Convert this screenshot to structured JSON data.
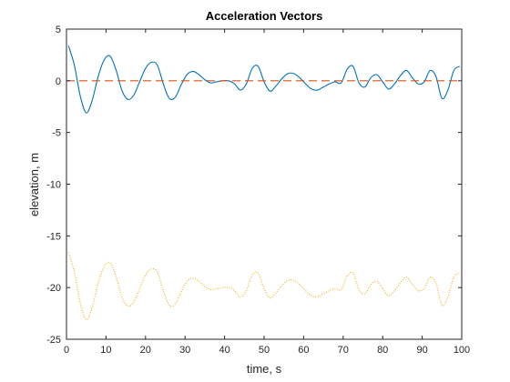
{
  "chart_data": {
    "type": "line",
    "title": "Acceleration Vectors",
    "xlabel": "time, s",
    "ylabel": "elevation, m",
    "xlim": [
      0,
      100
    ],
    "ylim": [
      -25,
      5
    ],
    "xticks": [
      0,
      10,
      20,
      30,
      40,
      50,
      60,
      70,
      80,
      90,
      100
    ],
    "yticks": [
      5,
      0,
      -5,
      -10,
      -15,
      -20,
      -25
    ],
    "xtick_labels": [
      "0",
      "10",
      "20",
      "30",
      "40",
      "50",
      "60",
      "70",
      "80",
      "90",
      "100"
    ],
    "ytick_labels": [
      "5",
      "0",
      "-5",
      "-10",
      "-15",
      "-20",
      "-25"
    ],
    "grid": false,
    "series": [
      {
        "style": "solid",
        "color": "#0072BD",
        "x": [
          0.5,
          2,
          3.5,
          5,
          6.5,
          8,
          9.5,
          11,
          12.5,
          14,
          15.5,
          17,
          18.5,
          20,
          21.5,
          23,
          24.5,
          26,
          27.5,
          29,
          30.5,
          32,
          33.5,
          35,
          36.5,
          38,
          39.5,
          41,
          42.5,
          44,
          45.5,
          47,
          48.5,
          50,
          51.5,
          53,
          54.5,
          56,
          57.5,
          59,
          60.5,
          62,
          63.5,
          65,
          66.5,
          68,
          69.5,
          71,
          72.5,
          74,
          75.5,
          77,
          78.5,
          80,
          81.5,
          83,
          84.5,
          86,
          87.5,
          89,
          90.5,
          92,
          93.5,
          95,
          96.5,
          98,
          99.5
        ],
        "y": [
          3.4,
          1.5,
          -1.5,
          -3.1,
          -1.9,
          0.4,
          2.0,
          2.4,
          1.1,
          -0.9,
          -1.8,
          -1.4,
          -0.1,
          1.2,
          1.8,
          1.5,
          -0.3,
          -1.7,
          -1.6,
          -0.4,
          0.6,
          0.9,
          0.6,
          0.1,
          -0.2,
          -0.1,
          0.0,
          0.0,
          -0.3,
          -0.9,
          -0.3,
          1.2,
          1.4,
          -0.1,
          -1.0,
          -0.5,
          0.2,
          0.7,
          0.7,
          0.3,
          -0.3,
          -0.8,
          -0.9,
          -0.6,
          -0.3,
          -0.1,
          -0.2,
          1.1,
          1.4,
          -0.2,
          -0.6,
          0.3,
          0.6,
          -0.1,
          -0.8,
          -0.3,
          0.5,
          1.0,
          0.3,
          -0.3,
          -0.1,
          1.0,
          0.4,
          -1.7,
          -0.9,
          1.0,
          1.4
        ]
      },
      {
        "style": "dashed",
        "color": "#D95319",
        "x": [
          0,
          100
        ],
        "y": [
          0,
          0
        ]
      },
      {
        "style": "dotted",
        "color": "#EDB120",
        "x": [
          0.5,
          2,
          3.5,
          5,
          6.5,
          8,
          9.5,
          11,
          12.5,
          14,
          15.5,
          17,
          18.5,
          20,
          21.5,
          23,
          24.5,
          26,
          27.5,
          29,
          30.5,
          32,
          33.5,
          35,
          36.5,
          38,
          39.5,
          41,
          42.5,
          44,
          45.5,
          47,
          48.5,
          50,
          51.5,
          53,
          54.5,
          56,
          57.5,
          59,
          60.5,
          62,
          63.5,
          65,
          66.5,
          68,
          69.5,
          71,
          72.5,
          74,
          75.5,
          77,
          78.5,
          80,
          81.5,
          83,
          84.5,
          86,
          87.5,
          89,
          90.5,
          92,
          93.5,
          95,
          96.5,
          98,
          99.5
        ],
        "y": [
          -16.6,
          -18.5,
          -21.5,
          -23.1,
          -21.9,
          -19.6,
          -18.0,
          -17.6,
          -18.9,
          -20.9,
          -21.8,
          -21.4,
          -20.1,
          -18.8,
          -18.2,
          -18.5,
          -20.3,
          -21.7,
          -21.6,
          -20.4,
          -19.4,
          -19.1,
          -19.4,
          -19.9,
          -20.2,
          -20.1,
          -20.0,
          -20.0,
          -20.3,
          -20.9,
          -20.3,
          -18.8,
          -18.6,
          -20.1,
          -21.0,
          -20.5,
          -19.8,
          -19.3,
          -19.3,
          -19.7,
          -20.3,
          -20.8,
          -20.9,
          -20.6,
          -20.3,
          -20.1,
          -20.2,
          -18.9,
          -18.6,
          -20.2,
          -20.6,
          -19.7,
          -19.4,
          -20.1,
          -20.8,
          -20.3,
          -19.5,
          -19.0,
          -19.7,
          -20.3,
          -20.1,
          -19.0,
          -19.6,
          -21.7,
          -20.9,
          -19.0,
          -18.6
        ]
      }
    ]
  }
}
